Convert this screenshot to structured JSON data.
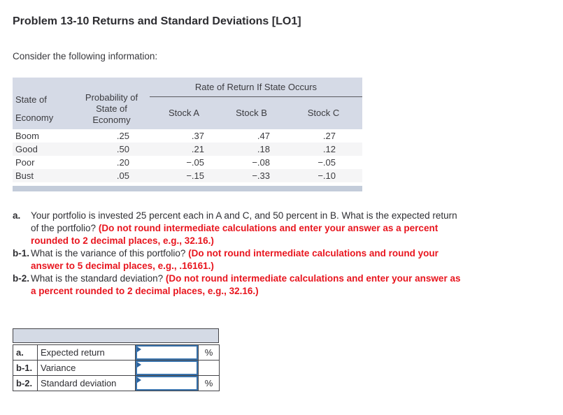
{
  "colors": {
    "header_band": "#d5dae6",
    "table_strip": "#c3ccda",
    "alt_row": "#f5f5f6",
    "instruction_red": "#e8151e",
    "input_border_blue": "#3a74ae",
    "answer_header_band": "#d4dae5"
  },
  "header": {
    "title": "Problem 13-10 Returns and Standard Deviations [LO1]",
    "intro": "Consider the following information:"
  },
  "info_table": {
    "span_header": "Rate of Return If State Occurs",
    "state_header": [
      "State of",
      "Economy"
    ],
    "prob_header": [
      "Probability of",
      "State of",
      "Economy"
    ],
    "stock_headers": [
      "Stock A",
      "Stock B",
      "Stock C"
    ],
    "rows": [
      {
        "state": "Boom",
        "prob": ".25",
        "a": ".37",
        "b": ".47",
        "c": ".27"
      },
      {
        "state": "Good",
        "prob": ".50",
        "a": ".21",
        "b": ".18",
        "c": ".12"
      },
      {
        "state": "Poor",
        "prob": ".20",
        "a": "−.05",
        "b": "−.08",
        "c": "−.05"
      },
      {
        "state": "Bust",
        "prob": ".05",
        "a": "−.15",
        "b": "−.33",
        "c": "−.10"
      }
    ]
  },
  "questions": [
    {
      "label": "a.",
      "text": "Your portfolio is invested 25 percent each in A and C, and 50 percent in B. What is the expected return of the portfolio? ",
      "instruction": "(Do not round intermediate calculations and enter your answer as a percent rounded to 2 decimal places, e.g., 32.16.)"
    },
    {
      "label": "b-1.",
      "text": "What is the variance of this portfolio? ",
      "instruction": "(Do not round intermediate calculations and round your answer to 5 decimal places, e.g., .16161.)"
    },
    {
      "label": "b-2.",
      "text": "What is the standard deviation? ",
      "instruction": "(Do not round intermediate calculations and enter your answer as a percent rounded to 2 decimal places, e.g., 32.16.)"
    }
  ],
  "answer_table": {
    "rows": [
      {
        "label": "a.",
        "desc": "Expected return",
        "value": "",
        "suffix": "%"
      },
      {
        "label": "b-1.",
        "desc": "Variance",
        "value": "",
        "suffix": ""
      },
      {
        "label": "b-2.",
        "desc": "Standard deviation",
        "value": "",
        "suffix": "%"
      }
    ]
  }
}
